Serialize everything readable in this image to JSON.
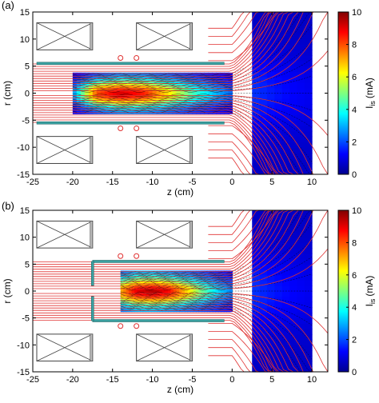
{
  "chart_data": [
    {
      "type": "heatmap",
      "panel_label": "(a)",
      "xlabel": "z (cm)",
      "ylabel": "r (cm)",
      "xlim": [
        -25,
        12
      ],
      "ylim": [
        -15,
        15
      ],
      "xticks": [
        -25,
        -20,
        -15,
        -10,
        -5,
        0,
        5,
        10
      ],
      "yticks": [
        -15,
        -10,
        -5,
        0,
        5,
        10,
        15
      ],
      "colorbar": {
        "label": "I",
        "label_subscript": "is",
        "label_unit": "(mA)",
        "range": [
          0,
          10
        ],
        "ticks": [
          0,
          2,
          4,
          6,
          8,
          10
        ],
        "colormap": "jet"
      },
      "field_region": {
        "z": [
          -20,
          0
        ],
        "r": [
          -3.8,
          3.8
        ]
      },
      "plume_region": {
        "z": [
          2.5,
          10
        ],
        "r": [
          -15,
          15
        ]
      },
      "intensity_profile": {
        "z": [
          -20,
          -17,
          -14,
          -11,
          -8,
          -5,
          -2,
          0
        ],
        "center_value": [
          2.5,
          8.0,
          9.2,
          8.5,
          6.5,
          4.5,
          3.0,
          2.2
        ],
        "edge_value": [
          1.0,
          1.5,
          2.0,
          2.0,
          1.8,
          1.5,
          1.2,
          1.0
        ]
      },
      "coil_rings_z": [
        -14,
        -12
      ],
      "coil_rings_r": 6.5
    },
    {
      "type": "heatmap",
      "panel_label": "(b)",
      "xlabel": "z (cm)",
      "ylabel": "r (cm)",
      "xlim": [
        -25,
        12
      ],
      "ylim": [
        -15,
        15
      ],
      "xticks": [
        -25,
        -20,
        -15,
        -10,
        -5,
        0,
        5,
        10
      ],
      "yticks": [
        -15,
        -10,
        -5,
        0,
        5,
        10,
        15
      ],
      "colorbar": {
        "label": "I",
        "label_subscript": "is",
        "label_unit": "(mA)",
        "range": [
          0,
          10
        ],
        "ticks": [
          0,
          2,
          4,
          6,
          8,
          10
        ],
        "colormap": "jet"
      },
      "field_region": {
        "z": [
          -14,
          0
        ],
        "r": [
          -3.8,
          3.8
        ]
      },
      "plume_region": {
        "z": [
          2.5,
          10
        ],
        "r": [
          -15,
          15
        ]
      },
      "intensity_profile": {
        "z": [
          -14,
          -12,
          -10,
          -8,
          -6,
          -4,
          -2,
          0
        ],
        "center_value": [
          7.0,
          9.0,
          9.5,
          8.8,
          7.0,
          5.0,
          3.5,
          2.5
        ],
        "edge_value": [
          2.0,
          2.5,
          2.5,
          2.2,
          2.0,
          1.8,
          1.5,
          1.2
        ]
      },
      "coil_rings_z": [
        -14,
        -12
      ],
      "coil_rings_r": 6.5
    }
  ]
}
